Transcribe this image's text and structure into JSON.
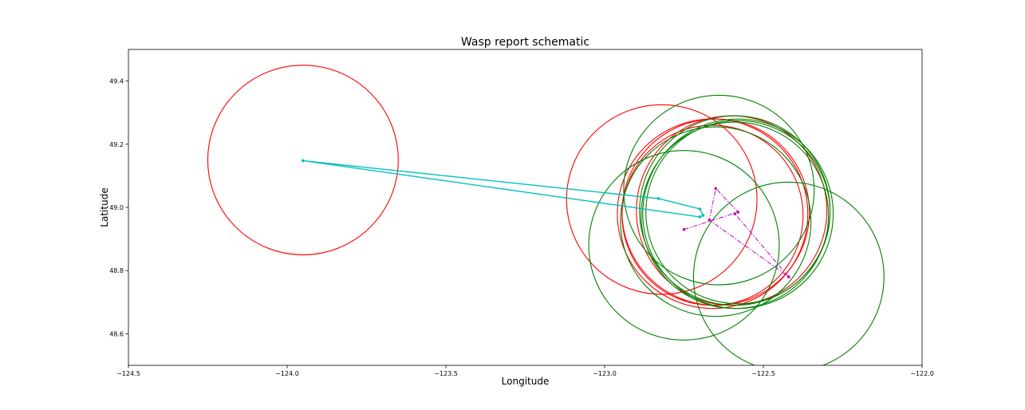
{
  "chart_data": {
    "type": "scatter",
    "title": "Wasp report schematic",
    "xlabel": "Longitude",
    "ylabel": "Latitude",
    "xlim": [
      -124.5,
      -122.0
    ],
    "ylim": [
      48.5,
      49.5
    ],
    "x_ticks": [
      -124.5,
      -124.0,
      -123.5,
      -123.0,
      -122.5,
      -122.0
    ],
    "x_tick_labels": [
      "−124.5",
      "−124.0",
      "−123.5",
      "−123.0",
      "−122.5",
      "−122.0"
    ],
    "y_ticks": [
      48.6,
      48.8,
      49.0,
      49.2,
      49.4
    ],
    "y_tick_labels": [
      "48.6",
      "48.8",
      "49.0",
      "49.2",
      "49.4"
    ],
    "grid": false,
    "colors": {
      "red": "#ff0000",
      "green": "#008000",
      "cyan": "#00bfbf",
      "magenta": "#bf00bf"
    },
    "circles": [
      {
        "color": "red",
        "cx": -123.95,
        "cy": 49.15,
        "r": 0.3
      },
      {
        "color": "red",
        "cx": -122.82,
        "cy": 49.025,
        "r": 0.3
      },
      {
        "color": "red",
        "cx": -122.66,
        "cy": 48.98,
        "r": 0.3
      },
      {
        "color": "red",
        "cx": -122.65,
        "cy": 48.985,
        "r": 0.295
      },
      {
        "color": "red",
        "cx": -122.66,
        "cy": 48.975,
        "r": 0.285
      },
      {
        "color": "red",
        "cx": -122.6,
        "cy": 48.99,
        "r": 0.3
      },
      {
        "color": "green",
        "cx": -122.65,
        "cy": 48.955,
        "r": 0.3
      },
      {
        "color": "green",
        "cx": -122.64,
        "cy": 49.055,
        "r": 0.3
      },
      {
        "color": "green",
        "cx": -122.75,
        "cy": 48.88,
        "r": 0.3
      },
      {
        "color": "green",
        "cx": -122.58,
        "cy": 48.98,
        "r": 0.3
      },
      {
        "color": "green",
        "cx": -122.59,
        "cy": 48.99,
        "r": 0.3
      },
      {
        "color": "green",
        "cx": -122.59,
        "cy": 48.975,
        "r": 0.295
      },
      {
        "color": "green",
        "cx": -122.58,
        "cy": 48.985,
        "r": 0.29
      },
      {
        "color": "green",
        "cx": -122.42,
        "cy": 48.78,
        "r": 0.3
      }
    ],
    "series": [
      {
        "color": "cyan",
        "style": "solid",
        "marker": "dot",
        "points": [
          [
            -123.95,
            49.148
          ],
          [
            -122.83,
            49.028
          ],
          [
            -122.7,
            48.995
          ],
          [
            -122.69,
            48.975
          ],
          [
            -122.7,
            48.97
          ],
          [
            -123.95,
            49.148
          ]
        ]
      },
      {
        "color": "magenta",
        "style": "dashdot",
        "marker": "dot",
        "points": [
          [
            -122.75,
            48.93
          ],
          [
            -122.58,
            48.985
          ],
          [
            -122.65,
            49.06
          ],
          [
            -122.67,
            48.96
          ],
          [
            -122.42,
            48.78
          ],
          [
            -122.59,
            48.98
          ]
        ]
      }
    ]
  }
}
